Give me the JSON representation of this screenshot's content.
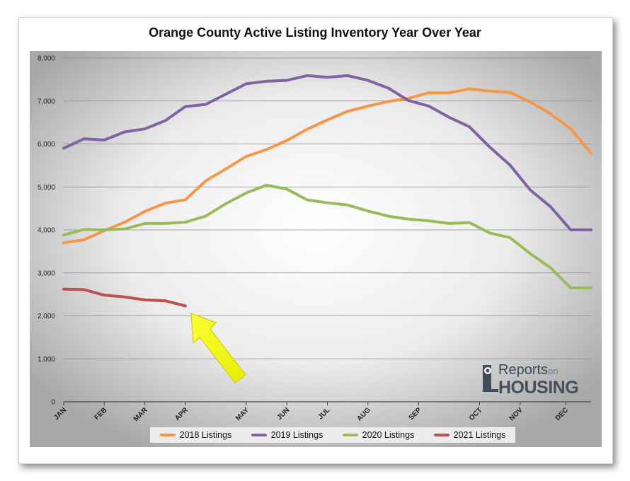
{
  "chart_data": {
    "type": "line",
    "title": "Orange County Active Listing Inventory Year Over Year",
    "xlabel": "",
    "ylabel": "",
    "ylim": [
      0,
      8000
    ],
    "yticks": [
      "0",
      "1,000",
      "2,000",
      "3,000",
      "4,000",
      "5,000",
      "6,000",
      "7,000",
      "8,000"
    ],
    "ytick_values": [
      0,
      1000,
      2000,
      3000,
      4000,
      5000,
      6000,
      7000,
      8000
    ],
    "xlim": [
      0,
      52
    ],
    "x_month_labels": [
      "JAN",
      "FEB",
      "MAR",
      "APR",
      "MAY",
      "JUN",
      "JUL",
      "AUG",
      "SEP",
      "OCT",
      "NOV",
      "DEC"
    ],
    "x_month_positions": [
      0,
      4,
      8,
      12,
      18,
      22,
      26,
      30,
      35,
      41,
      45,
      49.5
    ],
    "grid": true,
    "legend_position": "bottom",
    "series": [
      {
        "name": "2018 Listings",
        "color": "#f79646",
        "x": [
          0,
          2,
          4,
          6,
          8,
          10,
          12,
          14,
          16,
          18,
          20,
          22,
          24,
          26,
          28,
          30,
          32,
          34,
          36,
          38,
          40,
          42,
          44,
          46,
          48,
          50,
          52
        ],
        "values": [
          3700,
          3770,
          3980,
          4180,
          4430,
          4620,
          4700,
          5140,
          5420,
          5710,
          5870,
          6080,
          6340,
          6560,
          6760,
          6880,
          6990,
          7060,
          7190,
          7190,
          7280,
          7230,
          7200,
          6980,
          6700,
          6350,
          5780
        ]
      },
      {
        "name": "2019 Listings",
        "color": "#8064a2",
        "x": [
          0,
          2,
          4,
          6,
          8,
          10,
          12,
          14,
          16,
          18,
          20,
          22,
          24,
          26,
          28,
          30,
          32,
          34,
          36,
          38,
          40,
          42,
          44,
          46,
          48,
          50,
          52
        ],
        "values": [
          5900,
          6120,
          6090,
          6280,
          6350,
          6540,
          6870,
          6920,
          7160,
          7400,
          7460,
          7480,
          7590,
          7550,
          7590,
          7480,
          7300,
          7010,
          6880,
          6620,
          6400,
          5930,
          5510,
          4930,
          4540,
          4000,
          4000
        ]
      },
      {
        "name": "2020 Listings",
        "color": "#9bbb59",
        "x": [
          0,
          2,
          4,
          6,
          8,
          10,
          12,
          14,
          16,
          18,
          20,
          22,
          24,
          26,
          28,
          30,
          32,
          34,
          36,
          38,
          40,
          42,
          44,
          46,
          48,
          50,
          52
        ],
        "values": [
          3880,
          4010,
          4000,
          4020,
          4150,
          4150,
          4180,
          4320,
          4610,
          4860,
          5040,
          4950,
          4700,
          4630,
          4580,
          4440,
          4320,
          4250,
          4210,
          4150,
          4170,
          3930,
          3820,
          3450,
          3120,
          2650,
          2650
        ]
      },
      {
        "name": "2021 Listings",
        "color": "#c0504d",
        "x": [
          0,
          2,
          4,
          6,
          8,
          10,
          12
        ],
        "values": [
          2620,
          2610,
          2480,
          2440,
          2370,
          2350,
          2230
        ]
      }
    ]
  }
}
